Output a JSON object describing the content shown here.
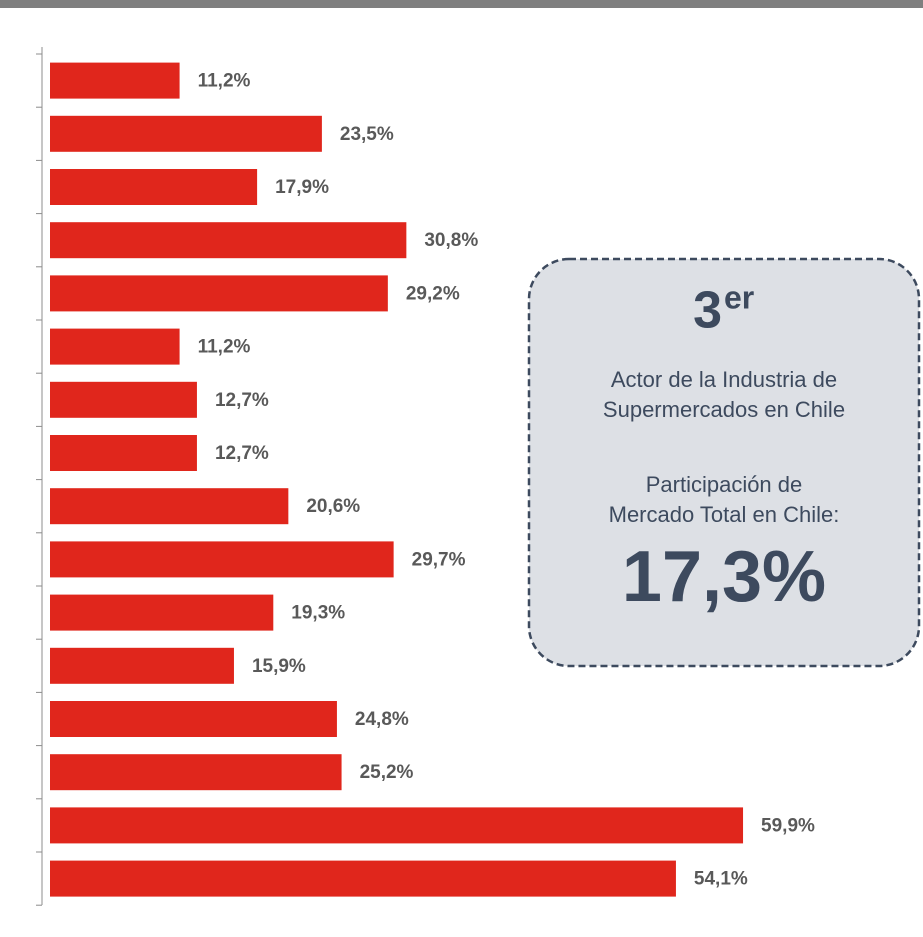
{
  "chart_data": {
    "type": "bar",
    "orientation": "horizontal",
    "categories": [
      null,
      null,
      null,
      null,
      null,
      null,
      null,
      null,
      null,
      null,
      null,
      null,
      null,
      null,
      null,
      null
    ],
    "values": [
      11.2,
      23.5,
      17.9,
      30.8,
      29.2,
      11.2,
      12.7,
      12.7,
      20.6,
      29.7,
      19.3,
      15.9,
      24.8,
      25.2,
      59.9,
      54.1
    ],
    "value_labels": [
      "11,2%",
      "23,5%",
      "17,9%",
      "30,8%",
      "29,2%",
      "11,2%",
      "12,7%",
      "12,7%",
      "20,6%",
      "29,7%",
      "19,3%",
      "15,9%",
      "24,8%",
      "25,2%",
      "59,9%",
      "54,1%"
    ],
    "color": "#e0261c",
    "annotations": {
      "rank_number": "3",
      "rank_suffix": "er",
      "line1": "Actor de la Industria de",
      "line2": "Supermercados en Chile",
      "line3": "Participación de",
      "line4": "Mercado Total en Chile:",
      "share": "17,3%"
    }
  }
}
